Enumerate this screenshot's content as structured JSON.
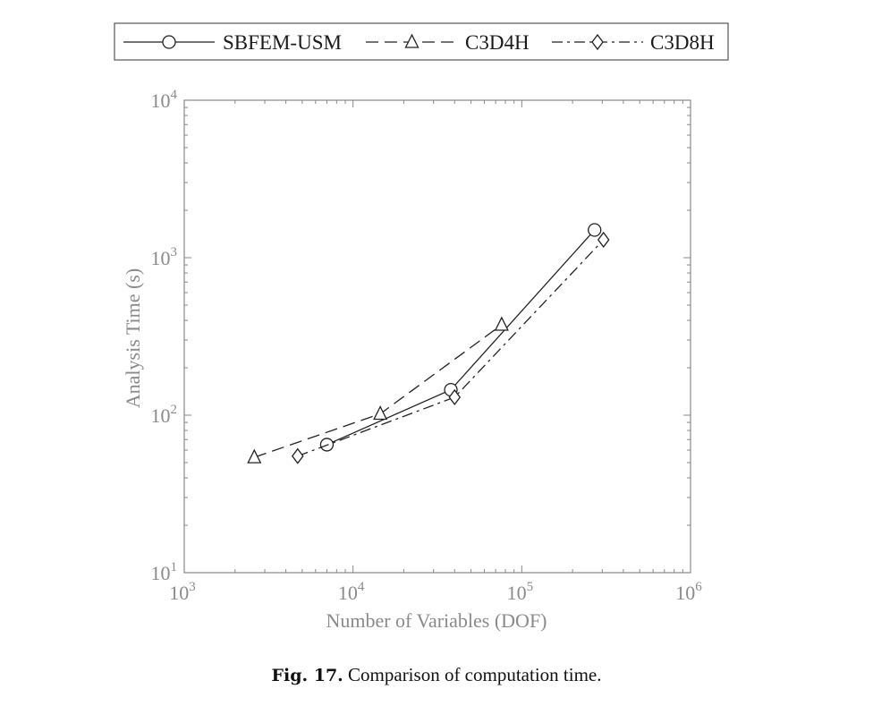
{
  "chart_data": {
    "type": "line",
    "x_scale": "log",
    "y_scale": "log",
    "xlabel": "Number of Variables (DOF)",
    "ylabel": "Analysis Time (s)",
    "xlim": [
      1000,
      1000000
    ],
    "ylim": [
      10,
      10000
    ],
    "x_ticks": [
      {
        "base": "10",
        "exp": "3"
      },
      {
        "base": "10",
        "exp": "4"
      },
      {
        "base": "10",
        "exp": "5"
      },
      {
        "base": "10",
        "exp": "6"
      }
    ],
    "y_ticks": [
      {
        "base": "10",
        "exp": "1"
      },
      {
        "base": "10",
        "exp": "2"
      },
      {
        "base": "10",
        "exp": "3"
      },
      {
        "base": "10",
        "exp": "4"
      }
    ],
    "grid": false,
    "legend_position": "top",
    "series": [
      {
        "name": "SBFEM-USM",
        "marker": "circle",
        "line_style": "solid",
        "x": [
          7000,
          38000,
          270000
        ],
        "y": [
          65,
          145,
          1500
        ]
      },
      {
        "name": "C3D4H",
        "marker": "triangle",
        "line_style": "dashed",
        "x": [
          2600,
          14500,
          76000
        ],
        "y": [
          54,
          102,
          375
        ]
      },
      {
        "name": "C3D8H",
        "marker": "diamond",
        "line_style": "dashdot",
        "x": [
          4700,
          40000,
          305000
        ],
        "y": [
          55,
          130,
          1300
        ]
      }
    ]
  },
  "caption": {
    "label": "Fig. 17.",
    "text": "Comparison of computation time."
  }
}
